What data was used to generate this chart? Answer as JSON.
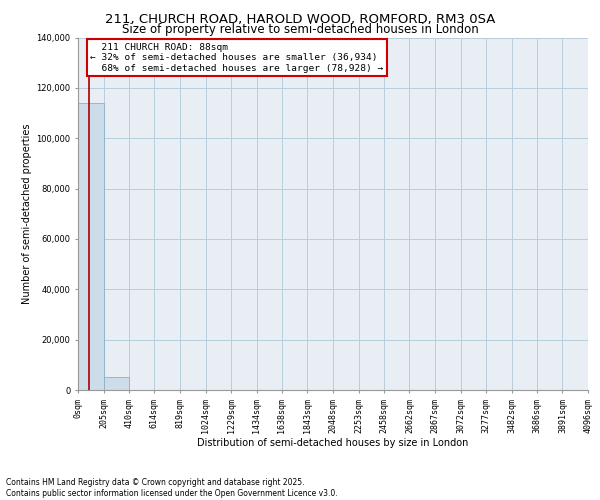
{
  "title": "211, CHURCH ROAD, HAROLD WOOD, ROMFORD, RM3 0SA",
  "subtitle": "Size of property relative to semi-detached houses in London",
  "xlabel": "Distribution of semi-detached houses by size in London",
  "ylabel": "Number of semi-detached properties",
  "footnote": "Contains HM Land Registry data © Crown copyright and database right 2025.\nContains public sector information licensed under the Open Government Licence v3.0.",
  "bar_edges": [
    0,
    205,
    410,
    614,
    819,
    1024,
    1229,
    1434,
    1638,
    1843,
    2048,
    2253,
    2458,
    2662,
    2867,
    3072,
    3277,
    3482,
    3686,
    3891,
    4096
  ],
  "bar_labels": [
    "0sqm",
    "205sqm",
    "410sqm",
    "614sqm",
    "819sqm",
    "1024sqm",
    "1229sqm",
    "1434sqm",
    "1638sqm",
    "1843sqm",
    "2048sqm",
    "2253sqm",
    "2458sqm",
    "2662sqm",
    "2867sqm",
    "3072sqm",
    "3277sqm",
    "3482sqm",
    "3686sqm",
    "3891sqm",
    "4096sqm"
  ],
  "bar_heights": [
    113862,
    5000,
    0,
    0,
    0,
    0,
    0,
    0,
    0,
    0,
    0,
    0,
    0,
    0,
    0,
    0,
    0,
    0,
    0,
    0
  ],
  "bar_color": "#ccdce8",
  "bar_edgecolor": "#8ab0cc",
  "property_size": 88,
  "property_label": "211 CHURCH ROAD: 88sqm",
  "pct_smaller": 32,
  "num_smaller": 36934,
  "pct_larger": 68,
  "num_larger": 78928,
  "vline_color": "#aa0000",
  "annotation_box_color": "#cc0000",
  "ylim": [
    0,
    140000
  ],
  "yticks": [
    0,
    20000,
    40000,
    60000,
    80000,
    100000,
    120000,
    140000
  ],
  "grid_color": "#b8cedd",
  "background_color": "#e8eef4",
  "title_fontsize": 9.5,
  "subtitle_fontsize": 8.5,
  "axis_label_fontsize": 7,
  "tick_fontsize": 6,
  "annotation_fontsize": 6.8,
  "footnote_fontsize": 5.5
}
